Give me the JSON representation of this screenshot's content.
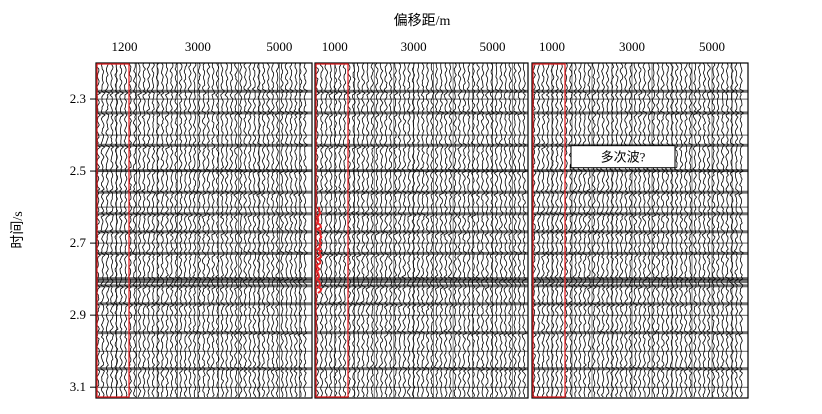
{
  "chart_data": {
    "type": "seismic-gathers",
    "title": "",
    "xlabel": "偏移距/m",
    "ylabel": "时间/s",
    "ylim": [
      2.2,
      3.13
    ],
    "y_ticks": [
      "2.3",
      "2.5",
      "2.7",
      "2.9",
      "3.1"
    ],
    "y_tick_values": [
      2.3,
      2.5,
      2.7,
      2.9,
      3.1
    ],
    "grid": true,
    "panels": [
      {
        "name": "gather-1",
        "x_ticks": [
          "1200",
          "3000",
          "5000"
        ],
        "x_tick_values": [
          1200,
          3000,
          5000
        ]
      },
      {
        "name": "gather-2",
        "x_ticks": [
          "1000",
          "3000",
          "5000"
        ],
        "x_tick_values": [
          1000,
          3000,
          5000
        ]
      },
      {
        "name": "gather-3",
        "x_ticks": [
          "1000",
          "3000",
          "5000"
        ],
        "x_tick_values": [
          1000,
          3000,
          5000
        ]
      }
    ],
    "strong_events_s": [
      2.28,
      2.34,
      2.43,
      2.5,
      2.56,
      2.62,
      2.67,
      2.73,
      2.8,
      2.82,
      2.87,
      2.95,
      3.05
    ],
    "annotation": {
      "text": "多次波?",
      "time_s": 2.46
    },
    "colors": {
      "trace": "#000000",
      "highlight": "#e8272a",
      "annotation_box": "#ffffff"
    }
  }
}
